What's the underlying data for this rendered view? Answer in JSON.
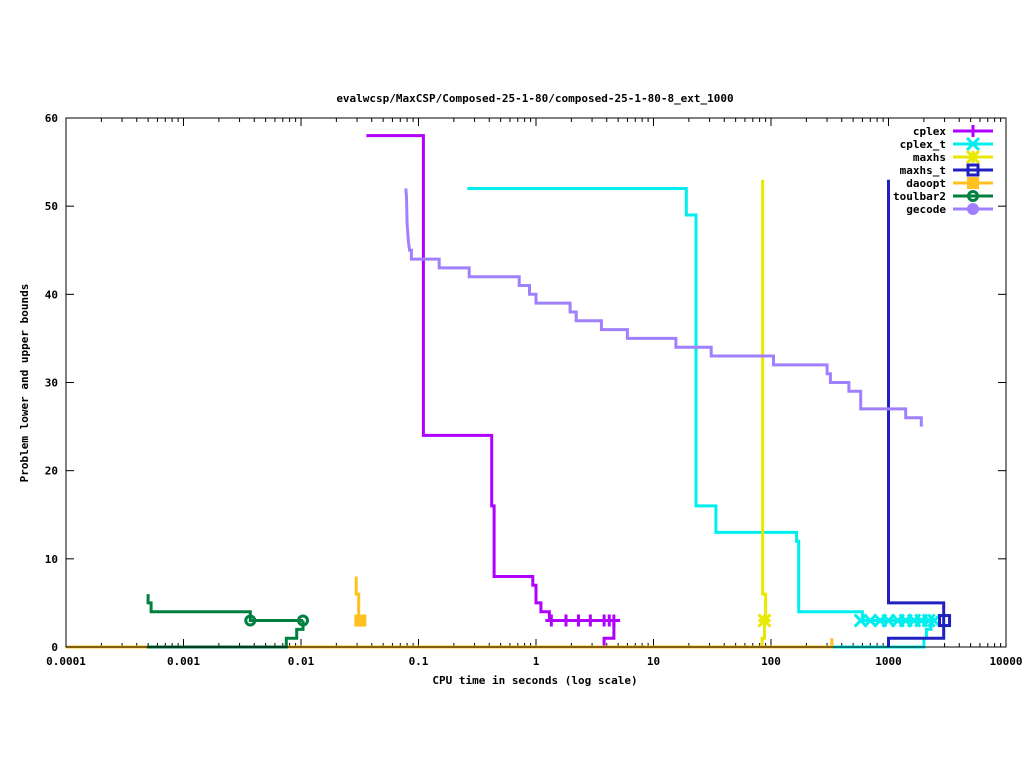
{
  "chart_data": {
    "type": "line",
    "title": "evalwcsp/MaxCSP/Composed-25-1-80/composed-25-1-80-8_ext_1000",
    "xlabel": "CPU time in seconds (log scale)",
    "ylabel": "Problem lower and upper bounds",
    "xscale": "log",
    "xlim": [
      0.0001,
      10000
    ],
    "ylim": [
      0,
      60
    ],
    "xticks": [
      0.0001,
      0.001,
      0.01,
      0.1,
      1,
      10,
      100,
      1000,
      10000
    ],
    "xtick_labels": [
      "0.0001",
      "0.001",
      "0.01",
      "0.1",
      "1",
      "10",
      "100",
      "1000",
      "10000"
    ],
    "yticks": [
      0,
      10,
      20,
      30,
      40,
      50,
      60
    ],
    "ytick_labels": [
      "0",
      "10",
      "20",
      "30",
      "40",
      "50",
      "60"
    ],
    "legend_position": "top-right",
    "series": [
      {
        "name": "cplex",
        "color": "#b000ff",
        "marker": "plus",
        "lines": [
          [
            [
              0.036,
              58
            ],
            [
              0.11,
              58
            ],
            [
              0.11,
              24
            ],
            [
              0.42,
              24
            ],
            [
              0.42,
              16
            ],
            [
              0.44,
              16
            ],
            [
              0.44,
              8
            ],
            [
              0.94,
              8
            ],
            [
              0.94,
              7
            ],
            [
              1.0,
              7
            ],
            [
              1.0,
              5
            ],
            [
              1.1,
              5
            ],
            [
              1.1,
              4
            ],
            [
              1.3,
              4
            ],
            [
              1.3,
              3
            ],
            [
              5.2,
              3
            ]
          ],
          [
            [
              0.0001,
              0
            ],
            [
              3.8,
              0
            ],
            [
              3.8,
              1
            ],
            [
              4.6,
              1
            ],
            [
              4.6,
              3
            ],
            [
              5.2,
              3
            ]
          ]
        ],
        "markers": [
          [
            1.35,
            3
          ],
          [
            1.8,
            3
          ],
          [
            2.3,
            3
          ],
          [
            2.9,
            3
          ],
          [
            3.8,
            3
          ],
          [
            4.2,
            3
          ],
          [
            4.6,
            3
          ]
        ]
      },
      {
        "name": "cplex_t",
        "color": "#00eeee",
        "marker": "cross",
        "lines": [
          [
            [
              0.26,
              52
            ],
            [
              19,
              52
            ],
            [
              19,
              49
            ],
            [
              23,
              49
            ],
            [
              23,
              16
            ],
            [
              34,
              16
            ],
            [
              34,
              13
            ],
            [
              165,
              13
            ],
            [
              165,
              12
            ],
            [
              172,
              12
            ],
            [
              172,
              4
            ],
            [
              600,
              4
            ],
            [
              600,
              3
            ],
            [
              2500,
              3
            ]
          ],
          [
            [
              330,
              0
            ],
            [
              2000,
              0
            ],
            [
              2000,
              1
            ],
            [
              2100,
              1
            ],
            [
              2100,
              2
            ],
            [
              2300,
              2
            ],
            [
              2300,
              3
            ],
            [
              2500,
              3
            ]
          ]
        ],
        "markers": [
          [
            580,
            3
          ],
          [
            700,
            3
          ],
          [
            850,
            3
          ],
          [
            1000,
            3
          ],
          [
            1200,
            3
          ],
          [
            1400,
            3
          ],
          [
            1650,
            3
          ],
          [
            1900,
            3
          ],
          [
            2200,
            3
          ],
          [
            2450,
            3
          ]
        ]
      },
      {
        "name": "maxhs",
        "color": "#e8e800",
        "marker": "star",
        "lines": [
          [
            [
              85,
              53
            ],
            [
              85,
              6
            ],
            [
              90,
              6
            ],
            [
              90,
              3
            ]
          ],
          [
            [
              84,
              0
            ],
            [
              84,
              1
            ],
            [
              88,
              1
            ],
            [
              88,
              3
            ]
          ]
        ],
        "markers": [
          [
            88,
            3
          ]
        ]
      },
      {
        "name": "maxhs_t",
        "color": "#2020c0",
        "marker": "box",
        "lines": [
          [
            [
              1000,
              53
            ],
            [
              1000,
              5
            ],
            [
              2950,
              5
            ],
            [
              2950,
              1
            ],
            [
              1000,
              1
            ],
            [
              1000,
              0
            ]
          ]
        ],
        "markers": [
          [
            3000,
            3
          ]
        ]
      },
      {
        "name": "daoopt",
        "color": "#ffc020",
        "marker": "filled-box",
        "lines": [
          [
            [
              0.0001,
              0
            ],
            [
              330,
              0
            ],
            [
              330,
              1
            ]
          ],
          [
            [
              0.0295,
              8
            ],
            [
              0.0295,
              6
            ],
            [
              0.031,
              6
            ],
            [
              0.031,
              3
            ],
            [
              0.033,
              3
            ]
          ]
        ],
        "markers": [
          [
            0.032,
            3
          ]
        ]
      },
      {
        "name": "toulbar2",
        "color": "#008040",
        "marker": "circle",
        "lines": [
          [
            [
              0.0005,
              6
            ],
            [
              0.0005,
              5
            ],
            [
              0.00053,
              5
            ],
            [
              0.00053,
              4
            ],
            [
              0.0037,
              4
            ],
            [
              0.0037,
              3
            ],
            [
              0.0104,
              3
            ]
          ],
          [
            [
              0.00049,
              0
            ],
            [
              0.0075,
              0
            ],
            [
              0.0075,
              1
            ],
            [
              0.0092,
              1
            ],
            [
              0.0092,
              2
            ],
            [
              0.0104,
              2
            ],
            [
              0.0104,
              3
            ]
          ]
        ],
        "markers": [
          [
            0.0037,
            3
          ],
          [
            0.0104,
            3
          ]
        ]
      },
      {
        "name": "gecode",
        "color": "#a080ff",
        "marker": "filled-circle",
        "lines": [
          [
            [
              0.078,
              52
            ],
            [
              0.079,
              51
            ],
            [
              0.08,
              48
            ],
            [
              0.082,
              46
            ],
            [
              0.084,
              45
            ],
            [
              0.087,
              45
            ],
            [
              0.087,
              44
            ],
            [
              0.15,
              44
            ],
            [
              0.15,
              43
            ],
            [
              0.27,
              43
            ],
            [
              0.27,
              42
            ],
            [
              0.72,
              42
            ],
            [
              0.72,
              41
            ],
            [
              0.88,
              41
            ],
            [
              0.88,
              40
            ],
            [
              1.0,
              40
            ],
            [
              1.0,
              39
            ],
            [
              1.95,
              39
            ],
            [
              1.95,
              38
            ],
            [
              2.2,
              38
            ],
            [
              2.2,
              37
            ],
            [
              3.6,
              37
            ],
            [
              3.6,
              36
            ],
            [
              6,
              36
            ],
            [
              6,
              35
            ],
            [
              15.5,
              35
            ],
            [
              15.5,
              34
            ],
            [
              31,
              34
            ],
            [
              31,
              33
            ],
            [
              105,
              33
            ],
            [
              105,
              32
            ],
            [
              300,
              32
            ],
            [
              300,
              31
            ],
            [
              320,
              31
            ],
            [
              320,
              30
            ],
            [
              460,
              30
            ],
            [
              460,
              29
            ],
            [
              580,
              29
            ],
            [
              580,
              27
            ],
            [
              1400,
              27
            ],
            [
              1400,
              26
            ],
            [
              1900,
              26
            ],
            [
              1900,
              25
            ]
          ]
        ],
        "markers": []
      }
    ]
  }
}
